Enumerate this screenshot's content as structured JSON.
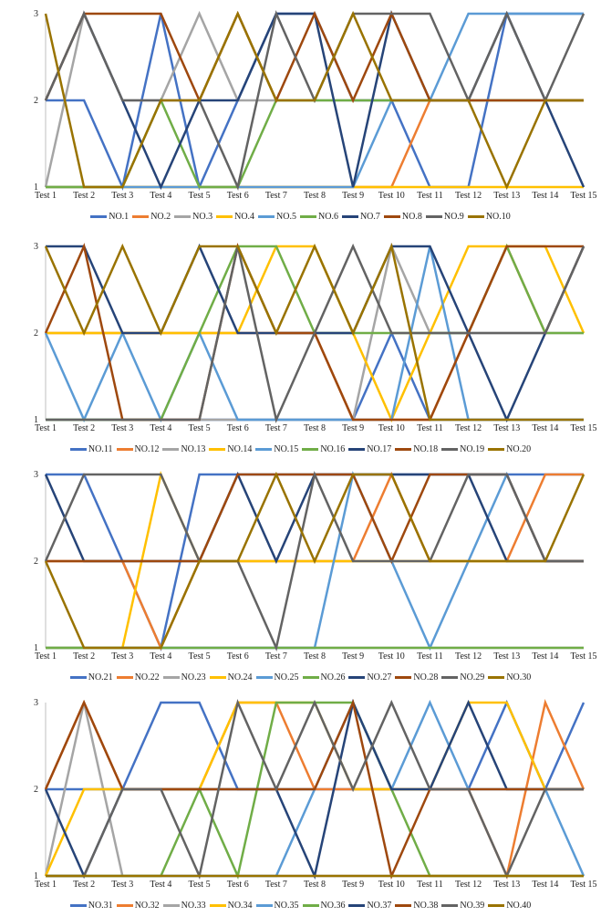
{
  "palette": [
    "#4472C4",
    "#ED7D31",
    "#A5A5A5",
    "#FFC000",
    "#5B9BD5",
    "#70AD47",
    "#264478",
    "#9E480E",
    "#636363",
    "#997300"
  ],
  "chart_data": [
    {
      "type": "line",
      "categories": [
        "Test 1",
        "Test 2",
        "Test 3",
        "Test 4",
        "Test 5",
        "Test 6",
        "Test 7",
        "Test 8",
        "Test 9",
        "Test 10",
        "Test 11",
        "Test 12",
        "Test 13",
        "Test 14",
        "Test 15"
      ],
      "ylim": [
        1,
        3
      ],
      "yticks": [
        1,
        2,
        3
      ],
      "legend": "bottom",
      "grid": false,
      "series": [
        {
          "name": "NO.1",
          "values": [
            2,
            2,
            1,
            3,
            1,
            2,
            3,
            3,
            2,
            2,
            1,
            1,
            3,
            3,
            3
          ]
        },
        {
          "name": "NO.2",
          "values": [
            1,
            1,
            1,
            1,
            1,
            1,
            1,
            1,
            1,
            1,
            2,
            2,
            2,
            2,
            2
          ]
        },
        {
          "name": "NO.3",
          "values": [
            1,
            3,
            2,
            2,
            3,
            2,
            2,
            2,
            2,
            2,
            2,
            2,
            2,
            2,
            2
          ]
        },
        {
          "name": "NO.4",
          "values": [
            1,
            1,
            1,
            1,
            1,
            1,
            1,
            1,
            1,
            1,
            1,
            1,
            1,
            1,
            1
          ]
        },
        {
          "name": "NO.5",
          "values": [
            1,
            1,
            1,
            1,
            1,
            1,
            1,
            1,
            1,
            2,
            2,
            3,
            3,
            3,
            3
          ]
        },
        {
          "name": "NO.6",
          "values": [
            1,
            1,
            1,
            2,
            1,
            1,
            2,
            2,
            2,
            2,
            2,
            2,
            2,
            2,
            2
          ]
        },
        {
          "name": "NO.7",
          "values": [
            2,
            3,
            2,
            1,
            2,
            2,
            3,
            3,
            1,
            3,
            2,
            2,
            3,
            2,
            1
          ]
        },
        {
          "name": "NO.8",
          "values": [
            2,
            3,
            3,
            3,
            2,
            3,
            2,
            3,
            2,
            3,
            2,
            2,
            2,
            2,
            2
          ]
        },
        {
          "name": "NO.9",
          "values": [
            2,
            3,
            2,
            2,
            2,
            1,
            3,
            2,
            3,
            3,
            3,
            2,
            3,
            2,
            3
          ]
        },
        {
          "name": "NO.10",
          "values": [
            3,
            1,
            1,
            2,
            2,
            3,
            2,
            2,
            3,
            2,
            2,
            2,
            1,
            2,
            2
          ]
        }
      ]
    },
    {
      "type": "line",
      "categories": [
        "Test 1",
        "Test 2",
        "Test 3",
        "Test 4",
        "Test 5",
        "Test 6",
        "Test 7",
        "Test 8",
        "Test 9",
        "Test 10",
        "Test 11",
        "Test 12",
        "Test 13",
        "Test 14",
        "Test 15"
      ],
      "ylim": [
        1,
        3
      ],
      "yticks": [
        1,
        2,
        3
      ],
      "legend": "bottom",
      "grid": false,
      "series": [
        {
          "name": "NO.11",
          "values": [
            1,
            1,
            1,
            1,
            1,
            1,
            1,
            1,
            1,
            2,
            1,
            1,
            1,
            1,
            1
          ]
        },
        {
          "name": "NO.12",
          "values": [
            2,
            2,
            2,
            2,
            2,
            2,
            2,
            2,
            1,
            1,
            1,
            2,
            3,
            2,
            3
          ]
        },
        {
          "name": "NO.13",
          "values": [
            1,
            1,
            1,
            1,
            1,
            1,
            1,
            1,
            1,
            3,
            2,
            2,
            2,
            2,
            2
          ]
        },
        {
          "name": "NO.14",
          "values": [
            2,
            2,
            2,
            2,
            2,
            2,
            3,
            3,
            2,
            1,
            2,
            3,
            3,
            3,
            2
          ]
        },
        {
          "name": "NO.15",
          "values": [
            2,
            1,
            2,
            1,
            2,
            1,
            1,
            1,
            1,
            1,
            3,
            1,
            1,
            1,
            1
          ]
        },
        {
          "name": "NO.16",
          "values": [
            1,
            1,
            1,
            1,
            2,
            3,
            3,
            2,
            2,
            2,
            2,
            2,
            3,
            2,
            2
          ]
        },
        {
          "name": "NO.17",
          "values": [
            3,
            3,
            2,
            2,
            3,
            2,
            2,
            2,
            2,
            3,
            3,
            2,
            1,
            2,
            3
          ]
        },
        {
          "name": "NO.18",
          "values": [
            2,
            3,
            1,
            1,
            1,
            3,
            2,
            2,
            1,
            1,
            1,
            2,
            3,
            3,
            3
          ]
        },
        {
          "name": "NO.19",
          "values": [
            1,
            1,
            1,
            1,
            1,
            3,
            1,
            2,
            3,
            2,
            2,
            2,
            2,
            2,
            3
          ]
        },
        {
          "name": "NO.20",
          "values": [
            3,
            2,
            3,
            2,
            3,
            3,
            2,
            3,
            2,
            3,
            1,
            1,
            1,
            1,
            1
          ]
        }
      ]
    },
    {
      "type": "line",
      "categories": [
        "Test 1",
        "Test 2",
        "Test 3",
        "Test 4",
        "Test 5",
        "Test 6",
        "Test 7",
        "Test 8",
        "Test 9",
        "Test 10",
        "Test 11",
        "Test 12",
        "Test 13",
        "Test 14",
        "Test 15"
      ],
      "ylim": [
        1,
        3
      ],
      "yticks": [
        1,
        2,
        3
      ],
      "legend": "bottom",
      "grid": false,
      "series": [
        {
          "name": "NO.21",
          "values": [
            3,
            3,
            2,
            1,
            3,
            3,
            3,
            3,
            3,
            3,
            3,
            3,
            3,
            3,
            3
          ]
        },
        {
          "name": "NO.22",
          "values": [
            2,
            2,
            2,
            1,
            2,
            2,
            2,
            2,
            2,
            3,
            2,
            2,
            2,
            3,
            3
          ]
        },
        {
          "name": "NO.23",
          "values": [
            1,
            1,
            1,
            1,
            1,
            1,
            1,
            1,
            1,
            1,
            1,
            1,
            1,
            1,
            1
          ]
        },
        {
          "name": "NO.24",
          "values": [
            1,
            1,
            1,
            3,
            2,
            2,
            2,
            2,
            2,
            2,
            2,
            2,
            2,
            2,
            2
          ]
        },
        {
          "name": "NO.25",
          "values": [
            1,
            1,
            1,
            1,
            1,
            1,
            1,
            1,
            3,
            2,
            1,
            2,
            3,
            2,
            2
          ]
        },
        {
          "name": "NO.26",
          "values": [
            1,
            1,
            1,
            1,
            1,
            1,
            1,
            1,
            1,
            1,
            1,
            1,
            1,
            1,
            1
          ]
        },
        {
          "name": "NO.27",
          "values": [
            3,
            2,
            2,
            2,
            2,
            3,
            2,
            3,
            3,
            3,
            3,
            3,
            2,
            2,
            2
          ]
        },
        {
          "name": "NO.28",
          "values": [
            2,
            2,
            2,
            2,
            2,
            3,
            3,
            3,
            3,
            2,
            3,
            3,
            3,
            2,
            2
          ]
        },
        {
          "name": "NO.29",
          "values": [
            2,
            3,
            3,
            3,
            2,
            2,
            1,
            3,
            2,
            2,
            2,
            3,
            3,
            2,
            2
          ]
        },
        {
          "name": "NO.30",
          "values": [
            2,
            1,
            1,
            1,
            2,
            2,
            3,
            2,
            3,
            3,
            2,
            2,
            2,
            2,
            3
          ]
        }
      ]
    },
    {
      "type": "line",
      "categories": [
        "Test 1",
        "Test 2",
        "Test 3",
        "Test 4",
        "Test 5",
        "Test 6",
        "Test 7",
        "Test 8",
        "Test 9",
        "Test 10",
        "Test 11",
        "Test 12",
        "Test 13",
        "Test 14",
        "Test 15"
      ],
      "ylim": [
        1,
        3
      ],
      "yticks": [
        1,
        2,
        3
      ],
      "legend": "bottom",
      "grid": false,
      "series": [
        {
          "name": "NO.31",
          "values": [
            2,
            2,
            2,
            3,
            3,
            2,
            2,
            2,
            2,
            2,
            2,
            2,
            3,
            2,
            3
          ]
        },
        {
          "name": "NO.32",
          "values": [
            2,
            3,
            2,
            2,
            2,
            3,
            3,
            2,
            2,
            2,
            2,
            2,
            1,
            3,
            2
          ]
        },
        {
          "name": "NO.33",
          "values": [
            1,
            3,
            1,
            1,
            1,
            1,
            1,
            1,
            1,
            1,
            1,
            1,
            1,
            1,
            1
          ]
        },
        {
          "name": "NO.34",
          "values": [
            1,
            2,
            2,
            2,
            2,
            3,
            3,
            3,
            2,
            2,
            2,
            3,
            3,
            2,
            2
          ]
        },
        {
          "name": "NO.35",
          "values": [
            1,
            1,
            1,
            1,
            1,
            1,
            1,
            2,
            3,
            2,
            3,
            2,
            2,
            2,
            1
          ]
        },
        {
          "name": "NO.36",
          "values": [
            1,
            1,
            1,
            1,
            2,
            1,
            3,
            3,
            3,
            2,
            1,
            1,
            1,
            1,
            1
          ]
        },
        {
          "name": "NO.37",
          "values": [
            2,
            1,
            2,
            2,
            2,
            2,
            2,
            1,
            3,
            2,
            2,
            3,
            2,
            2,
            2
          ]
        },
        {
          "name": "NO.38",
          "values": [
            2,
            3,
            2,
            2,
            2,
            2,
            2,
            2,
            3,
            1,
            2,
            2,
            2,
            2,
            2
          ]
        },
        {
          "name": "NO.39",
          "values": [
            1,
            1,
            2,
            2,
            1,
            3,
            2,
            3,
            2,
            3,
            2,
            2,
            1,
            2,
            2
          ]
        },
        {
          "name": "NO.40",
          "values": [
            1,
            1,
            1,
            1,
            1,
            1,
            1,
            1,
            1,
            1,
            1,
            1,
            1,
            1,
            1
          ]
        }
      ]
    }
  ]
}
